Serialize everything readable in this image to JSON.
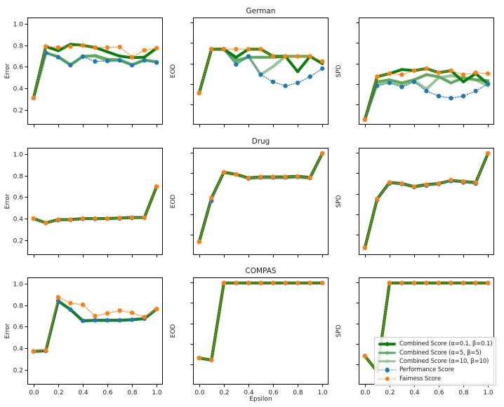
{
  "figure": {
    "background": "#ffffff",
    "text_color": "#1a1a1a",
    "axis_color": "#000000"
  },
  "chart_data": {
    "type": "line",
    "layout": {
      "rows": [
        "German",
        "Drug",
        "COMPAS"
      ],
      "cols": [
        "Error",
        "EOD",
        "SPD"
      ],
      "grid": false,
      "legend_position": "lower-right-subplot"
    },
    "x": [
      0.0,
      0.1,
      0.2,
      0.3,
      0.4,
      0.5,
      0.6,
      0.7,
      0.8,
      0.9,
      1.0
    ],
    "xlim": [
      -0.05,
      1.05
    ],
    "xlabel": "Epsilon",
    "xtick_values": [
      0.0,
      0.2,
      0.4,
      0.6,
      0.8,
      1.0
    ],
    "xtick_labels": [
      "0.0",
      "0.2",
      "0.4",
      "0.6",
      "0.8",
      "1.0"
    ],
    "series": [
      {
        "id": "combined_a01",
        "name": "Combined Score (α=0.1, β=0.1)",
        "color": "#0a7e0a",
        "width": 4,
        "dash": "none",
        "marker_r": 2.2
      },
      {
        "id": "combined_a5",
        "name": "Combined Score (α=5, β=5)",
        "color": "#5ea95e",
        "width": 4,
        "dash": "none",
        "marker_r": 2.2
      },
      {
        "id": "combined_a10",
        "name": "Combined Score (α=10, β=10)",
        "color": "#95c795",
        "width": 4,
        "dash": "none",
        "marker_r": 2.2
      },
      {
        "id": "performance",
        "name": "Performance Score",
        "color": "#1f77b4",
        "width": 1.3,
        "dash": "dot",
        "marker_r": 3.2
      },
      {
        "id": "fairness",
        "name": "Fairness Score",
        "color": "#ff7f0e",
        "width": 1.3,
        "dash": "dot",
        "marker_r": 3.2
      }
    ],
    "draw_order": [
      "combined_a10",
      "combined_a5",
      "combined_a01",
      "performance",
      "fairness"
    ],
    "plots": [
      {
        "row": "German",
        "metric": "Error",
        "title": "",
        "ylabel": "Error",
        "xlabel": "",
        "ylim": [
          0.06,
          1.06
        ],
        "ytick_values": [
          0.2,
          0.4,
          0.6,
          0.8,
          1.0
        ],
        "ytick_labels": [
          "0.2",
          "0.4",
          "0.6",
          "0.8",
          "1.0"
        ],
        "show_xtick_labels": false,
        "values": {
          "performance": [
            0.31,
            0.73,
            0.69,
            0.615,
            0.695,
            0.65,
            0.655,
            0.66,
            0.615,
            0.66,
            0.64
          ],
          "combined_a10": [
            0.31,
            0.735,
            0.69,
            0.615,
            0.7,
            0.7,
            0.655,
            0.66,
            0.615,
            0.66,
            0.65
          ],
          "combined_a5": [
            0.31,
            0.73,
            0.695,
            0.62,
            0.695,
            0.705,
            0.67,
            0.665,
            0.62,
            0.665,
            0.645
          ],
          "combined_a01": [
            0.31,
            0.79,
            0.75,
            0.81,
            0.8,
            0.78,
            0.74,
            0.7,
            0.685,
            0.69,
            0.775
          ],
          "fairness": [
            0.31,
            0.79,
            0.78,
            0.79,
            0.8,
            0.78,
            0.78,
            0.785,
            0.69,
            0.755,
            0.775
          ]
        }
      },
      {
        "row": "German",
        "metric": "EOD",
        "title": "German",
        "ylabel": "EOD",
        "xlabel": "",
        "ylim": [
          0.0,
          1.05
        ],
        "ytick_values": [
          0.2,
          0.4,
          0.6,
          0.8,
          1.0
        ],
        "ytick_labels": null,
        "show_xtick_labels": false,
        "values": {
          "performance": [
            0.31,
            0.74,
            0.74,
            0.59,
            0.67,
            0.49,
            0.42,
            0.38,
            0.41,
            0.47,
            0.55
          ],
          "combined_a10": [
            0.31,
            0.74,
            0.74,
            0.6,
            0.67,
            0.49,
            0.57,
            0.67,
            0.67,
            0.67,
            0.6
          ],
          "combined_a5": [
            0.31,
            0.74,
            0.74,
            0.63,
            0.66,
            0.66,
            0.66,
            0.67,
            0.67,
            0.67,
            0.6
          ],
          "combined_a01": [
            0.31,
            0.74,
            0.74,
            0.66,
            0.74,
            0.74,
            0.67,
            0.67,
            0.52,
            0.67,
            0.6
          ],
          "fairness": [
            0.31,
            0.74,
            0.74,
            0.74,
            0.74,
            0.74,
            0.67,
            0.67,
            0.67,
            0.67,
            0.62
          ]
        }
      },
      {
        "row": "German",
        "metric": "SPD",
        "title": "",
        "ylabel": "SPD",
        "xlabel": "",
        "ylim": [
          0.0,
          1.05
        ],
        "ytick_values": [
          0.2,
          0.4,
          0.6,
          0.8,
          1.0
        ],
        "ytick_labels": null,
        "show_xtick_labels": false,
        "values": {
          "performance": [
            0.05,
            0.38,
            0.41,
            0.37,
            0.42,
            0.33,
            0.28,
            0.26,
            0.28,
            0.33,
            0.4
          ],
          "combined_a10": [
            0.05,
            0.4,
            0.42,
            0.39,
            0.43,
            0.35,
            0.46,
            0.48,
            0.46,
            0.44,
            0.38
          ],
          "combined_a5": [
            0.05,
            0.42,
            0.44,
            0.41,
            0.44,
            0.49,
            0.47,
            0.41,
            0.46,
            0.44,
            0.43
          ],
          "combined_a01": [
            0.05,
            0.47,
            0.5,
            0.54,
            0.53,
            0.55,
            0.51,
            0.53,
            0.42,
            0.5,
            0.4
          ],
          "fairness": [
            0.05,
            0.47,
            0.5,
            0.49,
            0.53,
            0.55,
            0.51,
            0.53,
            0.49,
            0.51,
            0.5
          ]
        }
      },
      {
        "row": "Drug",
        "metric": "Error",
        "title": "",
        "ylabel": "Error",
        "xlabel": "",
        "ylim": [
          0.06,
          1.06
        ],
        "ytick_values": [
          0.2,
          0.4,
          0.6,
          0.8,
          1.0
        ],
        "ytick_labels": [
          "0.2",
          "0.4",
          "0.6",
          "0.8",
          "1.0"
        ],
        "show_xtick_labels": false,
        "values": {
          "performance": [
            0.4,
            0.358,
            0.385,
            0.388,
            0.396,
            0.396,
            0.398,
            0.4,
            0.405,
            0.408,
            0.698
          ],
          "combined_a10": [
            0.4,
            0.36,
            0.388,
            0.39,
            0.398,
            0.398,
            0.4,
            0.403,
            0.408,
            0.41,
            0.7
          ],
          "combined_a5": [
            0.4,
            0.36,
            0.39,
            0.39,
            0.4,
            0.4,
            0.4,
            0.405,
            0.41,
            0.41,
            0.7
          ],
          "combined_a01": [
            0.4,
            0.36,
            0.39,
            0.39,
            0.4,
            0.4,
            0.4,
            0.405,
            0.41,
            0.41,
            0.7
          ],
          "fairness": [
            0.4,
            0.36,
            0.39,
            0.39,
            0.4,
            0.4,
            0.4,
            0.405,
            0.41,
            0.41,
            0.7
          ]
        }
      },
      {
        "row": "Drug",
        "metric": "EOD",
        "title": "Drug",
        "ylabel": "EOD",
        "xlabel": "",
        "ylim": [
          0.0,
          1.05
        ],
        "ytick_values": [
          0.2,
          0.4,
          0.6,
          0.8,
          1.0
        ],
        "ytick_labels": null,
        "show_xtick_labels": false,
        "values": {
          "performance": [
            0.13,
            0.53,
            0.81,
            0.79,
            0.75,
            0.76,
            0.76,
            0.76,
            0.765,
            0.755,
            0.995
          ],
          "combined_a10": [
            0.13,
            0.55,
            0.81,
            0.79,
            0.75,
            0.755,
            0.755,
            0.755,
            0.76,
            0.75,
            0.995
          ],
          "combined_a5": [
            0.13,
            0.555,
            0.81,
            0.79,
            0.755,
            0.765,
            0.765,
            0.765,
            0.77,
            0.76,
            0.995
          ],
          "combined_a01": [
            0.13,
            0.56,
            0.81,
            0.79,
            0.755,
            0.765,
            0.765,
            0.765,
            0.77,
            0.76,
            0.995
          ],
          "fairness": [
            0.13,
            0.56,
            0.81,
            0.79,
            0.755,
            0.765,
            0.765,
            0.765,
            0.77,
            0.76,
            0.995
          ]
        }
      },
      {
        "row": "Drug",
        "metric": "SPD",
        "title": "",
        "ylabel": "SPD",
        "xlabel": "",
        "ylim": [
          0.0,
          1.05
        ],
        "ytick_values": [
          0.2,
          0.4,
          0.6,
          0.8,
          1.0
        ],
        "ytick_labels": null,
        "show_xtick_labels": false,
        "values": {
          "performance": [
            0.07,
            0.54,
            0.7,
            0.695,
            0.665,
            0.68,
            0.695,
            0.725,
            0.71,
            0.7,
            0.995
          ],
          "combined_a10": [
            0.07,
            0.545,
            0.705,
            0.698,
            0.665,
            0.685,
            0.698,
            0.728,
            0.715,
            0.705,
            0.995
          ],
          "combined_a5": [
            0.07,
            0.55,
            0.71,
            0.7,
            0.67,
            0.69,
            0.7,
            0.73,
            0.72,
            0.71,
            0.995
          ],
          "combined_a01": [
            0.07,
            0.55,
            0.71,
            0.7,
            0.67,
            0.69,
            0.7,
            0.73,
            0.72,
            0.71,
            0.995
          ],
          "fairness": [
            0.07,
            0.55,
            0.71,
            0.7,
            0.67,
            0.69,
            0.7,
            0.735,
            0.72,
            0.71,
            0.995
          ]
        }
      },
      {
        "row": "COMPAS",
        "metric": "Error",
        "title": "",
        "ylabel": "Error",
        "xlabel": "",
        "ylim": [
          0.06,
          1.06
        ],
        "ytick_values": [
          0.2,
          0.4,
          0.6,
          0.8,
          1.0
        ],
        "ytick_labels": [
          "0.2",
          "0.4",
          "0.6",
          "0.8",
          "1.0"
        ],
        "show_xtick_labels": true,
        "values": {
          "performance": [
            0.37,
            0.375,
            0.84,
            0.76,
            0.655,
            0.66,
            0.66,
            0.66,
            0.665,
            0.675,
            0.765
          ],
          "combined_a10": [
            0.37,
            0.375,
            0.84,
            0.76,
            0.655,
            0.66,
            0.66,
            0.66,
            0.665,
            0.675,
            0.765
          ],
          "combined_a5": [
            0.37,
            0.375,
            0.84,
            0.76,
            0.655,
            0.66,
            0.66,
            0.66,
            0.665,
            0.675,
            0.765
          ],
          "combined_a01": [
            0.37,
            0.375,
            0.84,
            0.76,
            0.655,
            0.66,
            0.66,
            0.66,
            0.665,
            0.675,
            0.765
          ],
          "fairness": [
            0.37,
            0.38,
            0.875,
            0.82,
            0.805,
            0.7,
            0.725,
            0.75,
            0.73,
            0.69,
            0.765
          ]
        }
      },
      {
        "row": "COMPAS",
        "metric": "EOD",
        "title": "COMPAS",
        "ylabel": "EOD",
        "xlabel": "Epsilon",
        "ylim": [
          0.0,
          1.05
        ],
        "ytick_values": [
          0.2,
          0.4,
          0.6,
          0.8,
          1.0
        ],
        "ytick_labels": null,
        "show_xtick_labels": true,
        "values": {
          "performance": [
            0.26,
            0.24,
            0.995,
            0.995,
            0.995,
            0.995,
            0.995,
            0.995,
            0.995,
            0.995,
            0.995
          ],
          "combined_a10": [
            0.26,
            0.24,
            0.995,
            0.995,
            0.995,
            0.995,
            0.995,
            0.995,
            0.995,
            0.995,
            0.995
          ],
          "combined_a5": [
            0.26,
            0.24,
            0.995,
            0.995,
            0.995,
            0.995,
            0.995,
            0.995,
            0.995,
            0.995,
            0.995
          ],
          "combined_a01": [
            0.26,
            0.24,
            0.995,
            0.995,
            0.995,
            0.995,
            0.995,
            0.995,
            0.995,
            0.995,
            0.995
          ],
          "fairness": [
            0.26,
            0.24,
            0.995,
            0.995,
            0.995,
            0.995,
            0.995,
            0.995,
            0.995,
            0.995,
            0.995
          ]
        }
      },
      {
        "row": "COMPAS",
        "metric": "SPD",
        "title": "",
        "ylabel": "SPD",
        "xlabel": "",
        "ylim": [
          0.0,
          1.05
        ],
        "ytick_values": [
          0.2,
          0.4,
          0.6,
          0.8,
          1.0
        ],
        "ytick_labels": null,
        "show_xtick_labels": true,
        "values": {
          "performance": [
            0.28,
            0.13,
            0.995,
            0.995,
            0.995,
            0.995,
            0.995,
            0.995,
            0.995,
            0.995,
            0.995
          ],
          "combined_a10": [
            0.28,
            0.13,
            0.995,
            0.995,
            0.995,
            0.995,
            0.995,
            0.995,
            0.995,
            0.995,
            0.995
          ],
          "combined_a5": [
            0.28,
            0.13,
            0.995,
            0.995,
            0.995,
            0.995,
            0.995,
            0.995,
            0.995,
            0.995,
            0.995
          ],
          "combined_a01": [
            0.28,
            0.13,
            0.995,
            0.995,
            0.995,
            0.995,
            0.995,
            0.995,
            0.995,
            0.995,
            0.995
          ],
          "fairness": [
            0.28,
            0.13,
            0.995,
            0.995,
            0.995,
            0.995,
            0.995,
            0.995,
            0.995,
            0.995,
            0.995
          ]
        }
      }
    ]
  }
}
